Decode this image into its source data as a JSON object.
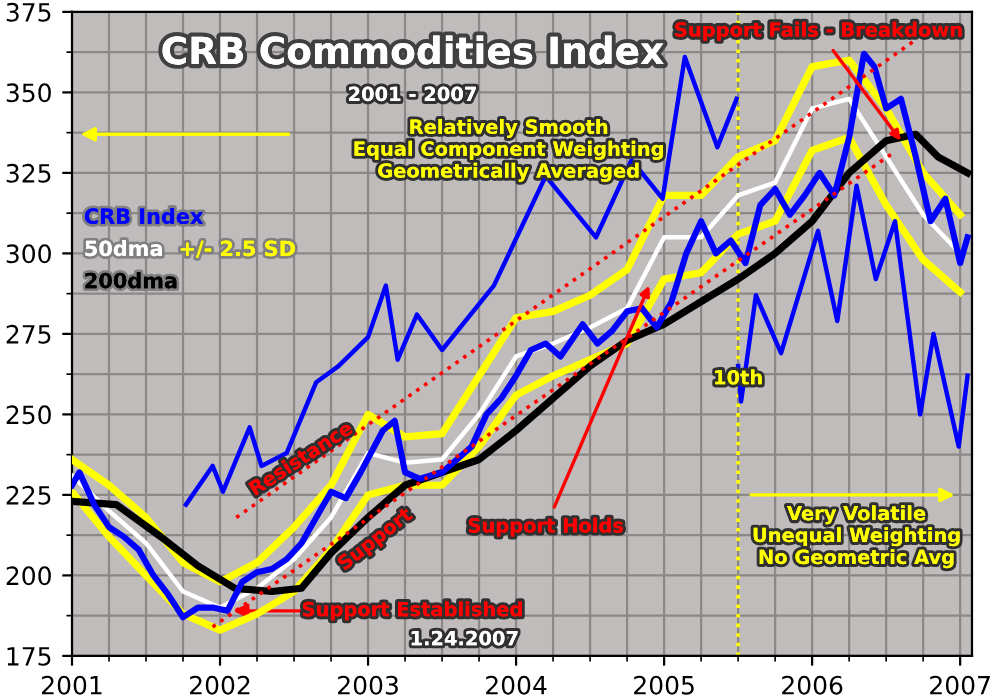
{
  "chart_data": {
    "type": "line",
    "title": "CRB Commodities Index",
    "subtitle": "2001 - 2007",
    "xlim": [
      2001,
      2007.08
    ],
    "xticks": [
      2001,
      2002,
      2003,
      2004,
      2005,
      2006,
      2007
    ],
    "ylim": [
      175,
      375
    ],
    "yticks": [
      175,
      200,
      225,
      250,
      275,
      300,
      325,
      350,
      375
    ],
    "grid": true,
    "series": [
      {
        "name": "+/- 2.5 SD",
        "color": "#ffff00",
        "x": [
          2001.0,
          2001.25,
          2001.5,
          2001.75,
          2002.0,
          2002.25,
          2002.5,
          2002.75,
          2003.0,
          2003.25,
          2003.5,
          2003.75,
          2004.0,
          2004.25,
          2004.5,
          2004.75,
          2005.0,
          2005.25,
          2005.5,
          2005.75,
          2006.0,
          2006.25,
          2006.5,
          2006.75,
          2007.0
        ],
        "values": [
          236,
          228,
          218,
          204,
          198,
          204,
          215,
          228,
          250,
          243,
          244,
          262,
          280,
          282,
          287,
          295,
          318,
          318,
          330,
          335,
          358,
          360,
          345,
          325,
          312
        ]
      },
      {
        "color": "#ffff00",
        "x": [
          2001.0,
          2001.25,
          2001.5,
          2001.75,
          2002.0,
          2002.25,
          2002.5,
          2002.75,
          2003.0,
          2003.25,
          2003.5,
          2003.75,
          2004.0,
          2004.25,
          2004.5,
          2004.75,
          2005.0,
          2005.25,
          2005.5,
          2005.75,
          2006.0,
          2006.25,
          2006.5,
          2006.75,
          2007.0
        ],
        "values": [
          226,
          212,
          200,
          188,
          183,
          188,
          195,
          208,
          225,
          228,
          228,
          240,
          256,
          262,
          267,
          272,
          292,
          294,
          306,
          310,
          332,
          336,
          315,
          298,
          288
        ]
      },
      {
        "name": "50dma",
        "color": "#ffffff",
        "x": [
          2001.0,
          2001.25,
          2001.5,
          2001.75,
          2002.0,
          2002.25,
          2002.5,
          2002.75,
          2003.0,
          2003.25,
          2003.5,
          2003.75,
          2004.0,
          2004.25,
          2004.5,
          2004.75,
          2005.0,
          2005.25,
          2005.5,
          2005.75,
          2006.0,
          2006.25,
          2006.5,
          2006.75,
          2007.0
        ],
        "values": [
          231,
          220,
          210,
          195,
          190,
          196,
          205,
          218,
          238,
          235,
          236,
          250,
          268,
          272,
          277,
          283,
          305,
          305,
          318,
          322,
          345,
          348,
          330,
          312,
          300
        ]
      },
      {
        "name": "200dma",
        "color": "#000000",
        "x": [
          2001.0,
          2001.3,
          2001.6,
          2001.85,
          2002.1,
          2002.35,
          2002.55,
          2002.75,
          2003.0,
          2003.25,
          2003.5,
          2003.75,
          2004.0,
          2004.25,
          2004.5,
          2004.75,
          2005.0,
          2005.25,
          2005.5,
          2005.75,
          2006.0,
          2006.25,
          2006.5,
          2006.7,
          2006.85,
          2007.05
        ],
        "values": [
          223,
          222,
          212,
          203,
          196,
          195,
          196,
          207,
          218,
          228,
          232,
          236,
          245,
          255,
          265,
          273,
          278,
          285,
          292,
          300,
          310,
          325,
          335,
          337,
          330,
          325
        ]
      },
      {
        "name": "CRB Index",
        "color": "#0000ff",
        "x": [
          2001.0,
          2001.05,
          2001.15,
          2001.25,
          2001.35,
          2001.45,
          2001.55,
          2001.65,
          2001.75,
          2001.85,
          2001.95,
          2002.05,
          2002.15,
          2002.25,
          2002.35,
          2002.45,
          2002.55,
          2002.65,
          2002.75,
          2002.85,
          2002.95,
          2003.1,
          2003.18,
          2003.25,
          2003.35,
          2003.5,
          2003.6,
          2003.7,
          2003.8,
          2003.9,
          2004.0,
          2004.1,
          2004.2,
          2004.3,
          2004.45,
          2004.55,
          2004.65,
          2004.75,
          2004.85,
          2004.95,
          2005.05,
          2005.15,
          2005.25,
          2005.35,
          2005.45,
          2005.55,
          2005.65,
          2005.75,
          2005.85,
          2005.95,
          2006.05,
          2006.15,
          2006.25,
          2006.35,
          2006.42,
          2006.5,
          2006.6,
          2006.7,
          2006.8,
          2006.9,
          2007.0,
          2007.05
        ],
        "values": [
          228,
          232,
          222,
          215,
          212,
          208,
          200,
          194,
          187,
          190,
          190,
          189,
          198,
          201,
          202,
          205,
          210,
          218,
          226,
          224,
          232,
          245,
          248,
          232,
          230,
          232,
          236,
          240,
          250,
          255,
          262,
          270,
          272,
          268,
          278,
          272,
          276,
          282,
          283,
          277,
          285,
          300,
          310,
          300,
          304,
          297,
          315,
          320,
          312,
          318,
          325,
          318,
          336,
          362,
          358,
          345,
          348,
          330,
          310,
          317,
          297,
          305
        ]
      },
      {
        "color": "#0000ff",
        "x": [
          2001.77,
          2001.95,
          2002.02,
          2002.2,
          2002.28,
          2002.45,
          2002.65,
          2002.8,
          2003.0,
          2003.12,
          2003.2,
          2003.33,
          2003.5,
          2003.85,
          2004.2,
          2004.54,
          2004.78,
          2004.99,
          2005.14,
          2005.36,
          2005.49,
          2005.495,
          2005.5,
          2005.52,
          2005.62,
          2005.79,
          2006.04,
          2006.17,
          2006.3,
          2006.43,
          2006.56,
          2006.73,
          2006.82,
          2006.99,
          2007.05
        ],
        "values": [
          222,
          234,
          226,
          246,
          234,
          238,
          260,
          265,
          274,
          290,
          267,
          281,
          270,
          290,
          324,
          305,
          329,
          317,
          361,
          333,
          348,
          null,
          265,
          254,
          287,
          269,
          307,
          279,
          321,
          292,
          310,
          250,
          275,
          240,
          262
        ]
      },
      {
        "color": "#ff0000",
        "line_style": "dotted",
        "x": [
          2002.11,
          2006.69
        ],
        "values": [
          218,
          366
        ]
      },
      {
        "color": "#ff0000",
        "line_style": "dotted",
        "x": [
          2001.95,
          2006.54
        ],
        "values": [
          184,
          331
        ]
      }
    ],
    "ref_lines": [
      {
        "axis": "x",
        "value": 2005.5,
        "color": "#ffff00",
        "line_style": "dotted"
      }
    ],
    "annotations": [
      "Relatively Smooth\nEqual Component Weighting\nGeometrically Averaged",
      {
        "text": "Support Fails - Breakdown",
        "x": 2006.6,
        "y": 335
      },
      "Resistance",
      "Support",
      "Support Established",
      {
        "text": "Support Holds",
        "x": 2004.9,
        "y": 290
      },
      "10th",
      "Very Volatile\nUnequal Weighting\nNo Geometric Avg",
      "1.24.2007"
    ]
  }
}
